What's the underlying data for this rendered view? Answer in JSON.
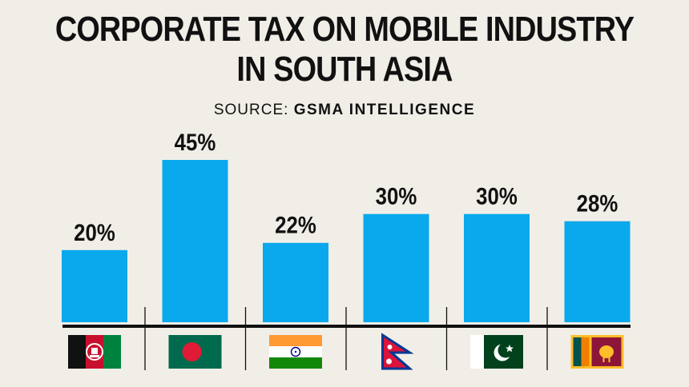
{
  "title_line1": "CORPORATE TAX ON MOBILE INDUSTRY",
  "title_line2": "IN SOUTH ASIA",
  "source_prefix": "SOURCE:",
  "source_name": "GSMA INTELLIGENCE",
  "colors": {
    "bar": "#0aa8ec",
    "background": "#f1eee7",
    "axis": "#111111"
  },
  "chart_data": {
    "type": "bar",
    "title": "CORPORATE TAX ON MOBILE INDUSTRY IN SOUTH ASIA",
    "categories": [
      "afghanistan-flag",
      "bangladesh-flag",
      "india-flag",
      "nepal-flag",
      "pakistan-flag",
      "sri-lanka-flag"
    ],
    "values": [
      20,
      45,
      22,
      30,
      30,
      28
    ],
    "data_labels": [
      "20%",
      "45%",
      "22%",
      "30%",
      "30%",
      "28%"
    ],
    "ylim": [
      0,
      45
    ],
    "grid": false,
    "legend": "none"
  }
}
